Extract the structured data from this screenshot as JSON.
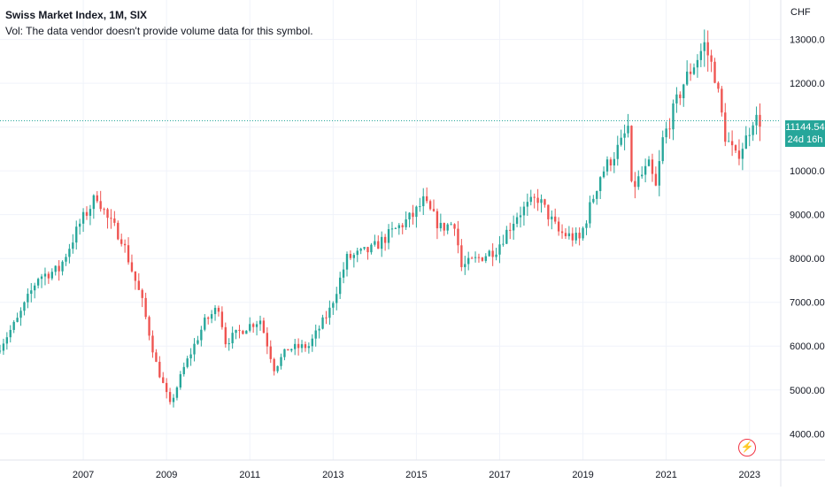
{
  "legend": {
    "title": "Swiss Market Index, 1M, SIX",
    "volume_note": "Vol: The data vendor doesn't provide volume data for this symbol."
  },
  "price_scale": {
    "currency": "CHF",
    "last_price_label": "11144.54",
    "countdown_label": "24d 16h"
  },
  "colors": {
    "up": "#26a69a",
    "down": "#ef5350",
    "grid": "#f0f3fa",
    "axis_text": "#131722"
  },
  "chart_data": {
    "type": "candlestick",
    "title": "Swiss Market Index, 1M, SIX",
    "ylabel": "CHF",
    "yticks": [
      4000,
      5000,
      6000,
      7000,
      8000,
      9000,
      10000,
      11000,
      12000,
      13000
    ],
    "ytick_labels": [
      "4000.00",
      "5000.00",
      "6000.00",
      "7000.00",
      "8000.00",
      "9000.00",
      "10000.00",
      "11000.00",
      "12000.00",
      "13000.00"
    ],
    "xticks": [
      "2007",
      "2009",
      "2011",
      "2013",
      "2015",
      "2017",
      "2019",
      "2021",
      "2023"
    ],
    "ylim": [
      3400,
      13900
    ],
    "xlim": [
      "2005-01",
      "2023-10"
    ],
    "last_price": 11144.54,
    "annual_close": [
      {
        "year": "2005",
        "close": 7580
      },
      {
        "year": "2006",
        "close": 8790
      },
      {
        "year": "2007",
        "close": 8480
      },
      {
        "year": "2008",
        "close": 5530
      },
      {
        "year": "2009",
        "close": 6550
      },
      {
        "year": "2010",
        "close": 6440
      },
      {
        "year": "2011",
        "close": 5940
      },
      {
        "year": "2012",
        "close": 6820
      },
      {
        "year": "2013",
        "close": 8200
      },
      {
        "year": "2014",
        "close": 8980
      },
      {
        "year": "2015",
        "close": 8820
      },
      {
        "year": "2016",
        "close": 8220
      },
      {
        "year": "2017",
        "close": 9380
      },
      {
        "year": "2018",
        "close": 8430
      },
      {
        "year": "2019",
        "close": 10620
      },
      {
        "year": "2020",
        "close": 10700
      },
      {
        "year": "2021",
        "close": 12880
      },
      {
        "year": "2022",
        "close": 10730
      },
      {
        "year": "2023",
        "close": 11145
      }
    ],
    "monthly_close_path": [
      [
        "2005-01",
        6000
      ],
      [
        "2005-06",
        6600
      ],
      [
        "2005-12",
        7580
      ],
      [
        "2006-06",
        7750
      ],
      [
        "2006-12",
        8790
      ],
      [
        "2007-05",
        9450
      ],
      [
        "2007-08",
        8900
      ],
      [
        "2007-12",
        8480
      ],
      [
        "2008-06",
        7000
      ],
      [
        "2008-10",
        5600
      ],
      [
        "2009-02",
        4650
      ],
      [
        "2009-06",
        5500
      ],
      [
        "2009-12",
        6550
      ],
      [
        "2010-04",
        6900
      ],
      [
        "2010-06",
        6100
      ],
      [
        "2010-12",
        6440
      ],
      [
        "2011-04",
        6600
      ],
      [
        "2011-08",
        5500
      ],
      [
        "2011-12",
        5940
      ],
      [
        "2012-06",
        6000
      ],
      [
        "2012-12",
        6820
      ],
      [
        "2013-05",
        8000
      ],
      [
        "2013-12",
        8200
      ],
      [
        "2014-06",
        8600
      ],
      [
        "2014-12",
        8980
      ],
      [
        "2015-03",
        9300
      ],
      [
        "2015-08",
        8700
      ],
      [
        "2015-12",
        8820
      ],
      [
        "2016-02",
        7800
      ],
      [
        "2016-12",
        8220
      ],
      [
        "2017-06",
        9000
      ],
      [
        "2017-12",
        9380
      ],
      [
        "2018-06",
        8600
      ],
      [
        "2018-12",
        8430
      ],
      [
        "2019-06",
        9900
      ],
      [
        "2019-12",
        10620
      ],
      [
        "2020-02",
        11000
      ],
      [
        "2020-03",
        9600
      ],
      [
        "2020-08",
        10100
      ],
      [
        "2020-10",
        9600
      ],
      [
        "2020-12",
        10700
      ],
      [
        "2021-06",
        12000
      ],
      [
        "2021-12",
        12880
      ],
      [
        "2022-03",
        12200
      ],
      [
        "2022-06",
        10800
      ],
      [
        "2022-09",
        10300
      ],
      [
        "2022-12",
        10730
      ],
      [
        "2023-02",
        11200
      ],
      [
        "2023-04",
        11144
      ]
    ]
  }
}
